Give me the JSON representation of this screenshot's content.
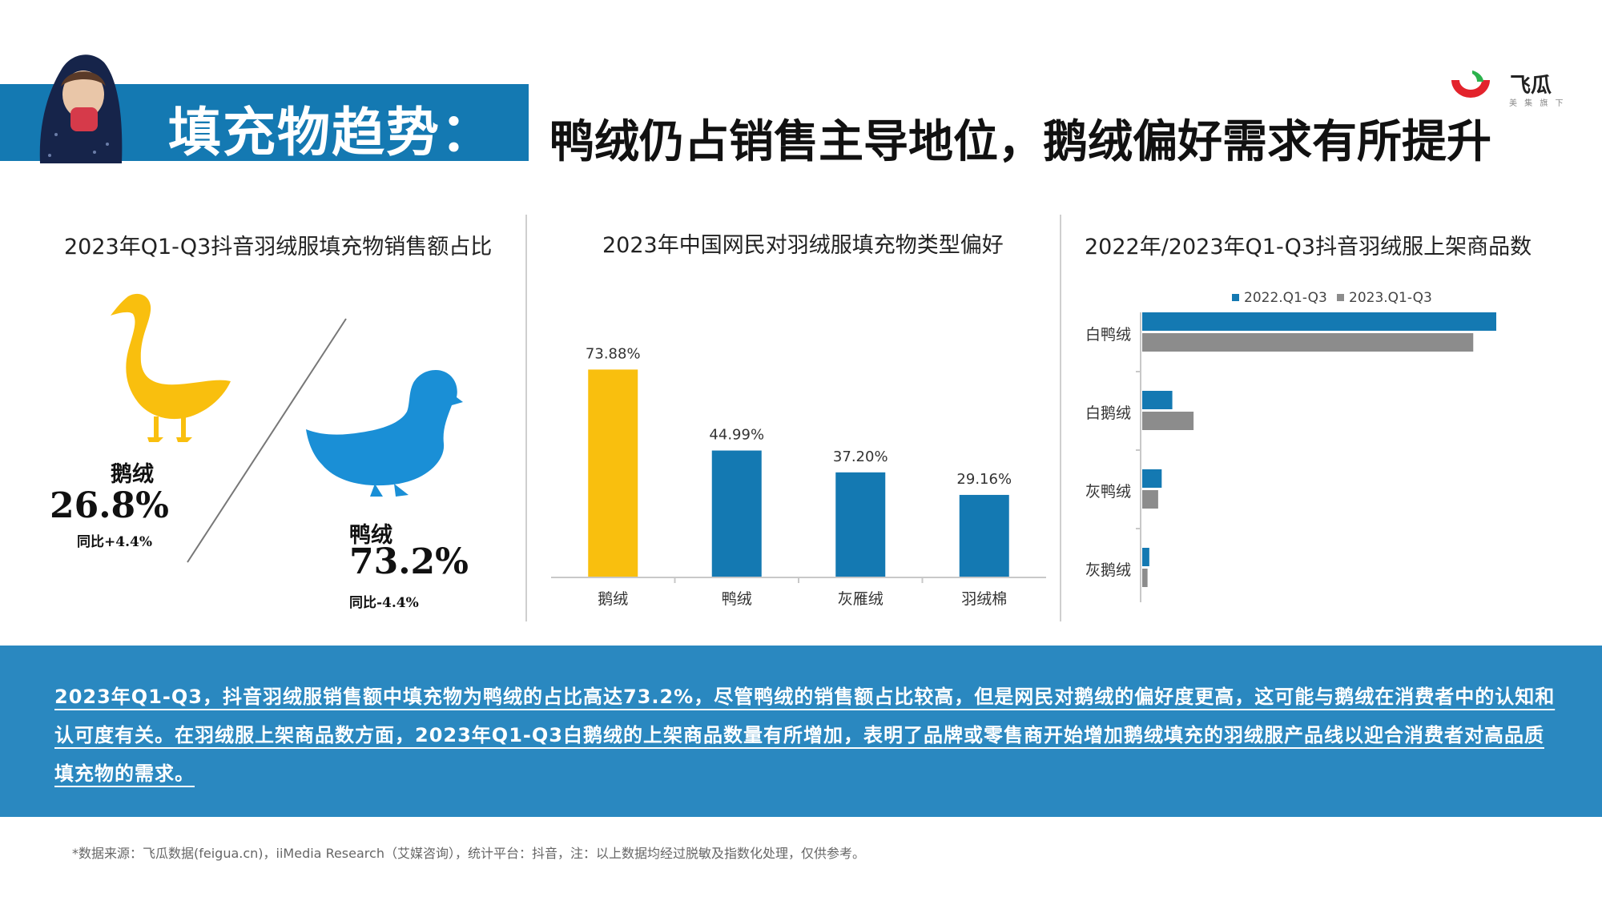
{
  "header": {
    "title_left": "填充物趋势：",
    "title_right": "鸭绒仍占销售主导地位，鹅绒偏好需求有所提升",
    "logo_text": "飞瓜",
    "logo_sub": "美 集 旗 下"
  },
  "left_panel": {
    "title": "2023年Q1-Q3抖音羽绒服填充物销售额占比",
    "goose": {
      "label": "鹅绒",
      "value": "26.8%",
      "yoy": "同比+4.4%",
      "color": "#f9bf0e"
    },
    "duck": {
      "label": "鸭绒",
      "value": "73.2%",
      "yoy": "同比-4.4%",
      "color": "#1a8fd6"
    }
  },
  "middle_panel": {
    "title": "2023年中国网民对羽绒服填充物类型偏好"
  },
  "right_panel": {
    "title": "2022年/2023年Q1-Q3抖音羽绒服上架商品数"
  },
  "chart_data": [
    {
      "type": "bar",
      "title": "2023年中国网民对羽绒服填充物类型偏好",
      "categories": [
        "鹅绒",
        "鸭绒",
        "灰雁绒",
        "羽绒棉"
      ],
      "values": [
        73.88,
        44.99,
        37.2,
        29.16
      ],
      "data_labels": [
        "73.88%",
        "44.99%",
        "37.20%",
        "29.16%"
      ],
      "colors": [
        "#f9bf0e",
        "#1479b2",
        "#1479b2",
        "#1479b2"
      ],
      "ylim": [
        0,
        100
      ],
      "grid": false
    },
    {
      "type": "bar",
      "orientation": "horizontal",
      "title": "2022年/2023年Q1-Q3抖音羽绒服上架商品数",
      "categories": [
        "白鸭绒",
        "白鹅绒",
        "灰鸭绒",
        "灰鹅绒"
      ],
      "series": [
        {
          "name": "2022.Q1-Q3",
          "values": [
            100,
            8.5,
            5.5,
            2
          ],
          "color": "#1479b2"
        },
        {
          "name": "2023.Q1-Q3",
          "values": [
            93.5,
            14.5,
            4.5,
            1.5
          ],
          "color": "#8c8c8c"
        }
      ],
      "legend": "top",
      "grid": false
    }
  ],
  "banner": {
    "text": "2023年Q1-Q3，抖音羽绒服销售额中填充物为鸭绒的占比高达73.2%，尽管鸭绒的销售额占比较高，但是网民对鹅绒的偏好度更高，这可能与鹅绒在消费者中的认知和认可度有关。在羽绒服上架商品数方面，2023年Q1-Q3白鹅绒的上架商品数量有所增加，表明了品牌或零售商开始增加鹅绒填充的羽绒服产品线以迎合消费者对高品质填充物的需求。"
  },
  "footnote": "*数据来源：飞瓜数据(feigua.cn)，iiMedia Research（艾媒咨询），统计平台：抖音，注：以上数据均经过脱敏及指数化处理，仅供参考。"
}
